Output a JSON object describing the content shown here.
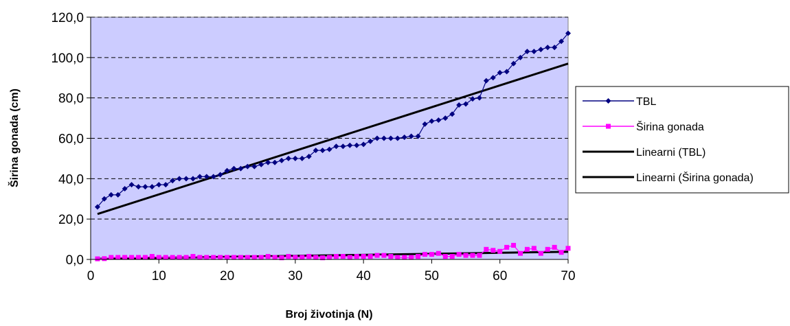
{
  "chart_data": {
    "type": "line",
    "title": "",
    "xlabel": "Broj životinja (N)",
    "ylabel": "Širina gonada (cm)",
    "xlim": [
      0,
      70
    ],
    "ylim": [
      0,
      120
    ],
    "x_ticks": [
      "0",
      "10",
      "20",
      "30",
      "40",
      "50",
      "60",
      "70"
    ],
    "y_ticks": [
      "0,0",
      "20,0",
      "40,0",
      "60,0",
      "80,0",
      "100,0",
      "120,0"
    ],
    "grid": "horizontal dashed",
    "legend_position": "right",
    "plot_background": "#ccccff",
    "series": [
      {
        "name": "TBL",
        "color": "#000080",
        "marker": "diamond",
        "x": [
          1,
          2,
          3,
          4,
          5,
          6,
          7,
          8,
          9,
          10,
          11,
          12,
          13,
          14,
          15,
          16,
          17,
          18,
          19,
          20,
          21,
          22,
          23,
          24,
          25,
          26,
          27,
          28,
          29,
          30,
          31,
          32,
          33,
          34,
          35,
          36,
          37,
          38,
          39,
          40,
          41,
          42,
          43,
          44,
          45,
          46,
          47,
          48,
          49,
          50,
          51,
          52,
          53,
          54,
          55,
          56,
          57,
          58,
          59,
          60,
          61,
          62,
          63,
          64,
          65,
          66,
          67,
          68,
          69,
          70
        ],
        "values": [
          26.0,
          30.0,
          32.0,
          32.0,
          35.0,
          37.0,
          36.0,
          36.0,
          36.0,
          37.0,
          37.0,
          39.0,
          40.0,
          40.0,
          40.0,
          41.0,
          41.0,
          41.0,
          42.0,
          44.0,
          45.0,
          45.0,
          46.0,
          46.0,
          47.0,
          48.0,
          48.0,
          49.0,
          50.0,
          50.0,
          50.0,
          51.0,
          54.0,
          54.0,
          54.5,
          56.0,
          56.0,
          56.5,
          56.5,
          57.0,
          58.5,
          60.0,
          60.0,
          60.0,
          60.0,
          60.5,
          61.0,
          61.0,
          67.0,
          68.5,
          69.0,
          70.0,
          72.0,
          76.5,
          77.0,
          79.5,
          80.0,
          88.5,
          90.0,
          92.5,
          93.0,
          97.0,
          100.0,
          103.0,
          103.0,
          104.0,
          105.0,
          105.0,
          108.0,
          112.0
        ]
      },
      {
        "name": "Širina gonada",
        "color": "#ff00ff",
        "marker": "square",
        "x": [
          1,
          2,
          3,
          4,
          5,
          6,
          7,
          8,
          9,
          10,
          11,
          12,
          13,
          14,
          15,
          16,
          17,
          18,
          19,
          20,
          21,
          22,
          23,
          24,
          25,
          26,
          27,
          28,
          29,
          30,
          31,
          32,
          33,
          34,
          35,
          36,
          37,
          38,
          39,
          40,
          41,
          42,
          43,
          44,
          45,
          46,
          47,
          48,
          49,
          50,
          51,
          52,
          53,
          54,
          55,
          56,
          57,
          58,
          59,
          60,
          61,
          62,
          63,
          64,
          65,
          66,
          67,
          68,
          69,
          70
        ],
        "values": [
          0.3,
          0.4,
          1.0,
          1.0,
          1.0,
          1.0,
          1.0,
          1.0,
          1.5,
          1.0,
          1.0,
          1.0,
          1.0,
          1.0,
          1.5,
          1.0,
          1.0,
          1.0,
          1.0,
          1.0,
          1.0,
          1.0,
          1.0,
          1.0,
          1.0,
          1.5,
          1.0,
          0.8,
          1.5,
          1.0,
          1.0,
          1.5,
          1.0,
          0.8,
          1.0,
          1.5,
          1.5,
          1.0,
          1.5,
          1.5,
          1.5,
          2.0,
          2.0,
          1.5,
          1.0,
          1.0,
          1.0,
          1.5,
          2.5,
          2.5,
          3.0,
          1.5,
          1.5,
          2.5,
          2.0,
          2.0,
          2.0,
          5.0,
          4.5,
          4.0,
          6.0,
          7.0,
          3.0,
          5.0,
          5.5,
          3.0,
          5.0,
          6.0,
          3.5,
          5.5
        ]
      },
      {
        "name": "Linearni (TBL)",
        "color": "#000000",
        "marker": "none",
        "trendline": true,
        "x": [
          1,
          70
        ],
        "values": [
          22.5,
          97.0
        ]
      },
      {
        "name": "Linearni (Širina gonada)",
        "color": "#000000",
        "marker": "none",
        "trendline": true,
        "x": [
          1,
          70
        ],
        "values": [
          0.3,
          3.8
        ]
      }
    ]
  }
}
